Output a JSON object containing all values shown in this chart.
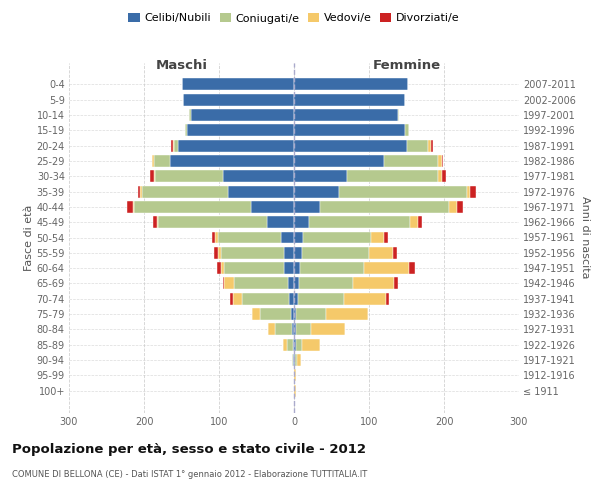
{
  "age_groups": [
    "0-4",
    "5-9",
    "10-14",
    "15-19",
    "20-24",
    "25-29",
    "30-34",
    "35-39",
    "40-44",
    "45-49",
    "50-54",
    "55-59",
    "60-64",
    "65-69",
    "70-74",
    "75-79",
    "80-84",
    "85-89",
    "90-94",
    "95-99",
    "100+"
  ],
  "birth_years": [
    "2007-2011",
    "2002-2006",
    "1997-2001",
    "1992-1996",
    "1987-1991",
    "1982-1986",
    "1977-1981",
    "1972-1976",
    "1967-1971",
    "1962-1966",
    "1957-1961",
    "1952-1956",
    "1947-1951",
    "1942-1946",
    "1937-1941",
    "1932-1936",
    "1927-1931",
    "1922-1926",
    "1917-1921",
    "1912-1916",
    "≤ 1911"
  ],
  "male_celibi": [
    150,
    148,
    138,
    143,
    155,
    165,
    95,
    88,
    58,
    36,
    17,
    14,
    13,
    8,
    7,
    4,
    3,
    2,
    1,
    0,
    0
  ],
  "male_coniugati": [
    0,
    0,
    2,
    2,
    5,
    22,
    90,
    115,
    155,
    145,
    85,
    83,
    80,
    72,
    62,
    42,
    22,
    8,
    2,
    0,
    0
  ],
  "male_vedovi": [
    0,
    0,
    0,
    1,
    2,
    3,
    2,
    3,
    2,
    2,
    3,
    5,
    5,
    13,
    13,
    10,
    10,
    5,
    0,
    0,
    0
  ],
  "male_divorziati": [
    0,
    0,
    0,
    0,
    2,
    0,
    5,
    2,
    8,
    5,
    5,
    5,
    5,
    2,
    3,
    0,
    0,
    0,
    0,
    0,
    0
  ],
  "female_nubili": [
    152,
    148,
    138,
    148,
    150,
    120,
    70,
    60,
    35,
    20,
    12,
    10,
    8,
    6,
    5,
    3,
    3,
    2,
    1,
    0,
    0
  ],
  "female_coniugate": [
    0,
    0,
    2,
    5,
    28,
    72,
    122,
    170,
    172,
    135,
    90,
    90,
    85,
    72,
    62,
    40,
    20,
    8,
    3,
    0,
    0
  ],
  "female_vedove": [
    0,
    0,
    0,
    0,
    5,
    5,
    5,
    5,
    10,
    10,
    18,
    32,
    60,
    55,
    55,
    55,
    45,
    25,
    5,
    3,
    2
  ],
  "female_divorziate": [
    0,
    0,
    0,
    0,
    2,
    2,
    5,
    8,
    8,
    5,
    5,
    5,
    8,
    5,
    5,
    0,
    0,
    0,
    0,
    0,
    0
  ],
  "colors": {
    "celibi": "#3a6ca8",
    "coniugati": "#b5c98e",
    "vedovi": "#f5c96a",
    "divorziati": "#cc2222"
  },
  "xlim": 300,
  "title": "Popolazione per età, sesso e stato civile - 2012",
  "subtitle": "COMUNE DI BELLONA (CE) - Dati ISTAT 1° gennaio 2012 - Elaborazione TUTTITALIA.IT",
  "ylabel_left": "Fasce di età",
  "ylabel_right": "Anni di nascita",
  "xlabel_maschi": "Maschi",
  "xlabel_femmine": "Femmine",
  "legend_labels": [
    "Celibi/Nubili",
    "Coniugati/e",
    "Vedovi/e",
    "Divorziati/e"
  ],
  "background_color": "#ffffff",
  "grid_color": "#cccccc"
}
